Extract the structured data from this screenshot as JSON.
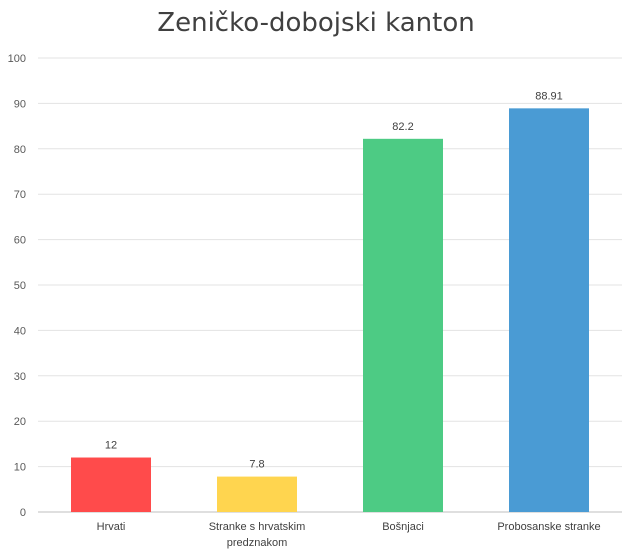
{
  "chart_data": {
    "type": "bar",
    "title": "Zeničko-dobojski kanton",
    "xlabel": "",
    "ylabel": "",
    "categories": [
      [
        "Hrvati"
      ],
      [
        "Stranke s hrvatskim",
        "predznakom"
      ],
      [
        "Bošnjaci"
      ],
      [
        "Probosanske stranke"
      ]
    ],
    "values": [
      12,
      7.8,
      82.2,
      88.91
    ],
    "data_labels": [
      "12",
      "7.8",
      "82.2",
      "88.91"
    ],
    "colors": [
      "#ff4b4b",
      "#ffd54f",
      "#4dcb84",
      "#4a9bd4"
    ],
    "ylim": [
      0,
      100
    ],
    "yticks": [
      "0",
      "10",
      "20",
      "30",
      "40",
      "50",
      "60",
      "70",
      "80",
      "90",
      "100"
    ],
    "grid": true,
    "legend": "none"
  }
}
